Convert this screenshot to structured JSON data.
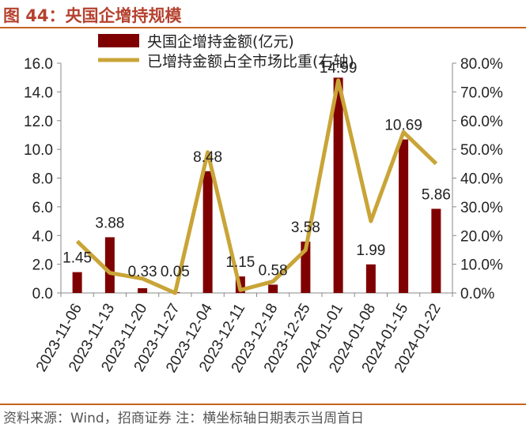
{
  "header": {
    "title": "图 44：央国企增持规模"
  },
  "footer": {
    "text": "资料来源：Wind，招商证券  注：横坐标轴日期表示当周首日"
  },
  "colors": {
    "bar": "#7f0000",
    "line": "#c9a437",
    "title": "#b5422f",
    "rule": "#c4651f"
  },
  "chart_data": {
    "type": "bar",
    "categories": [
      "2023-11-06",
      "2023-11-13",
      "2023-11-20",
      "2023-11-27",
      "2023-12-04",
      "2023-12-11",
      "2023-12-18",
      "2023-12-25",
      "2024-01-01",
      "2024-01-08",
      "2024-01-15",
      "2024-01-22"
    ],
    "series": [
      {
        "name": "央国企增持金额(亿元)",
        "type": "bar",
        "axis": "left",
        "values": [
          1.45,
          3.88,
          0.33,
          0.05,
          8.48,
          1.15,
          0.58,
          3.58,
          14.99,
          1.99,
          10.69,
          5.86
        ]
      },
      {
        "name": "已增持金额占全市场比重(右轴)",
        "type": "line",
        "axis": "right",
        "values": [
          18.0,
          7.0,
          5.0,
          0.0,
          49.0,
          1.0,
          4.0,
          15.0,
          74.0,
          25.0,
          56.0,
          45.0
        ]
      }
    ],
    "data_labels": [
      "1.45",
      "3.88",
      "0.33",
      "0.05",
      "8.48",
      "1.15",
      "0.58",
      "3.58",
      "14.99",
      "1.99",
      "10.69",
      "5.86"
    ],
    "ylim_left": [
      0,
      16
    ],
    "ylim_right": [
      0,
      80
    ],
    "left_ticks": [
      "0.0",
      "2.0",
      "4.0",
      "6.0",
      "8.0",
      "10.0",
      "12.0",
      "14.0",
      "16.0"
    ],
    "right_ticks": [
      "0.0%",
      "10.0%",
      "20.0%",
      "30.0%",
      "40.0%",
      "50.0%",
      "60.0%",
      "70.0%",
      "80.0%"
    ],
    "grid": false,
    "legend_position": "top"
  }
}
